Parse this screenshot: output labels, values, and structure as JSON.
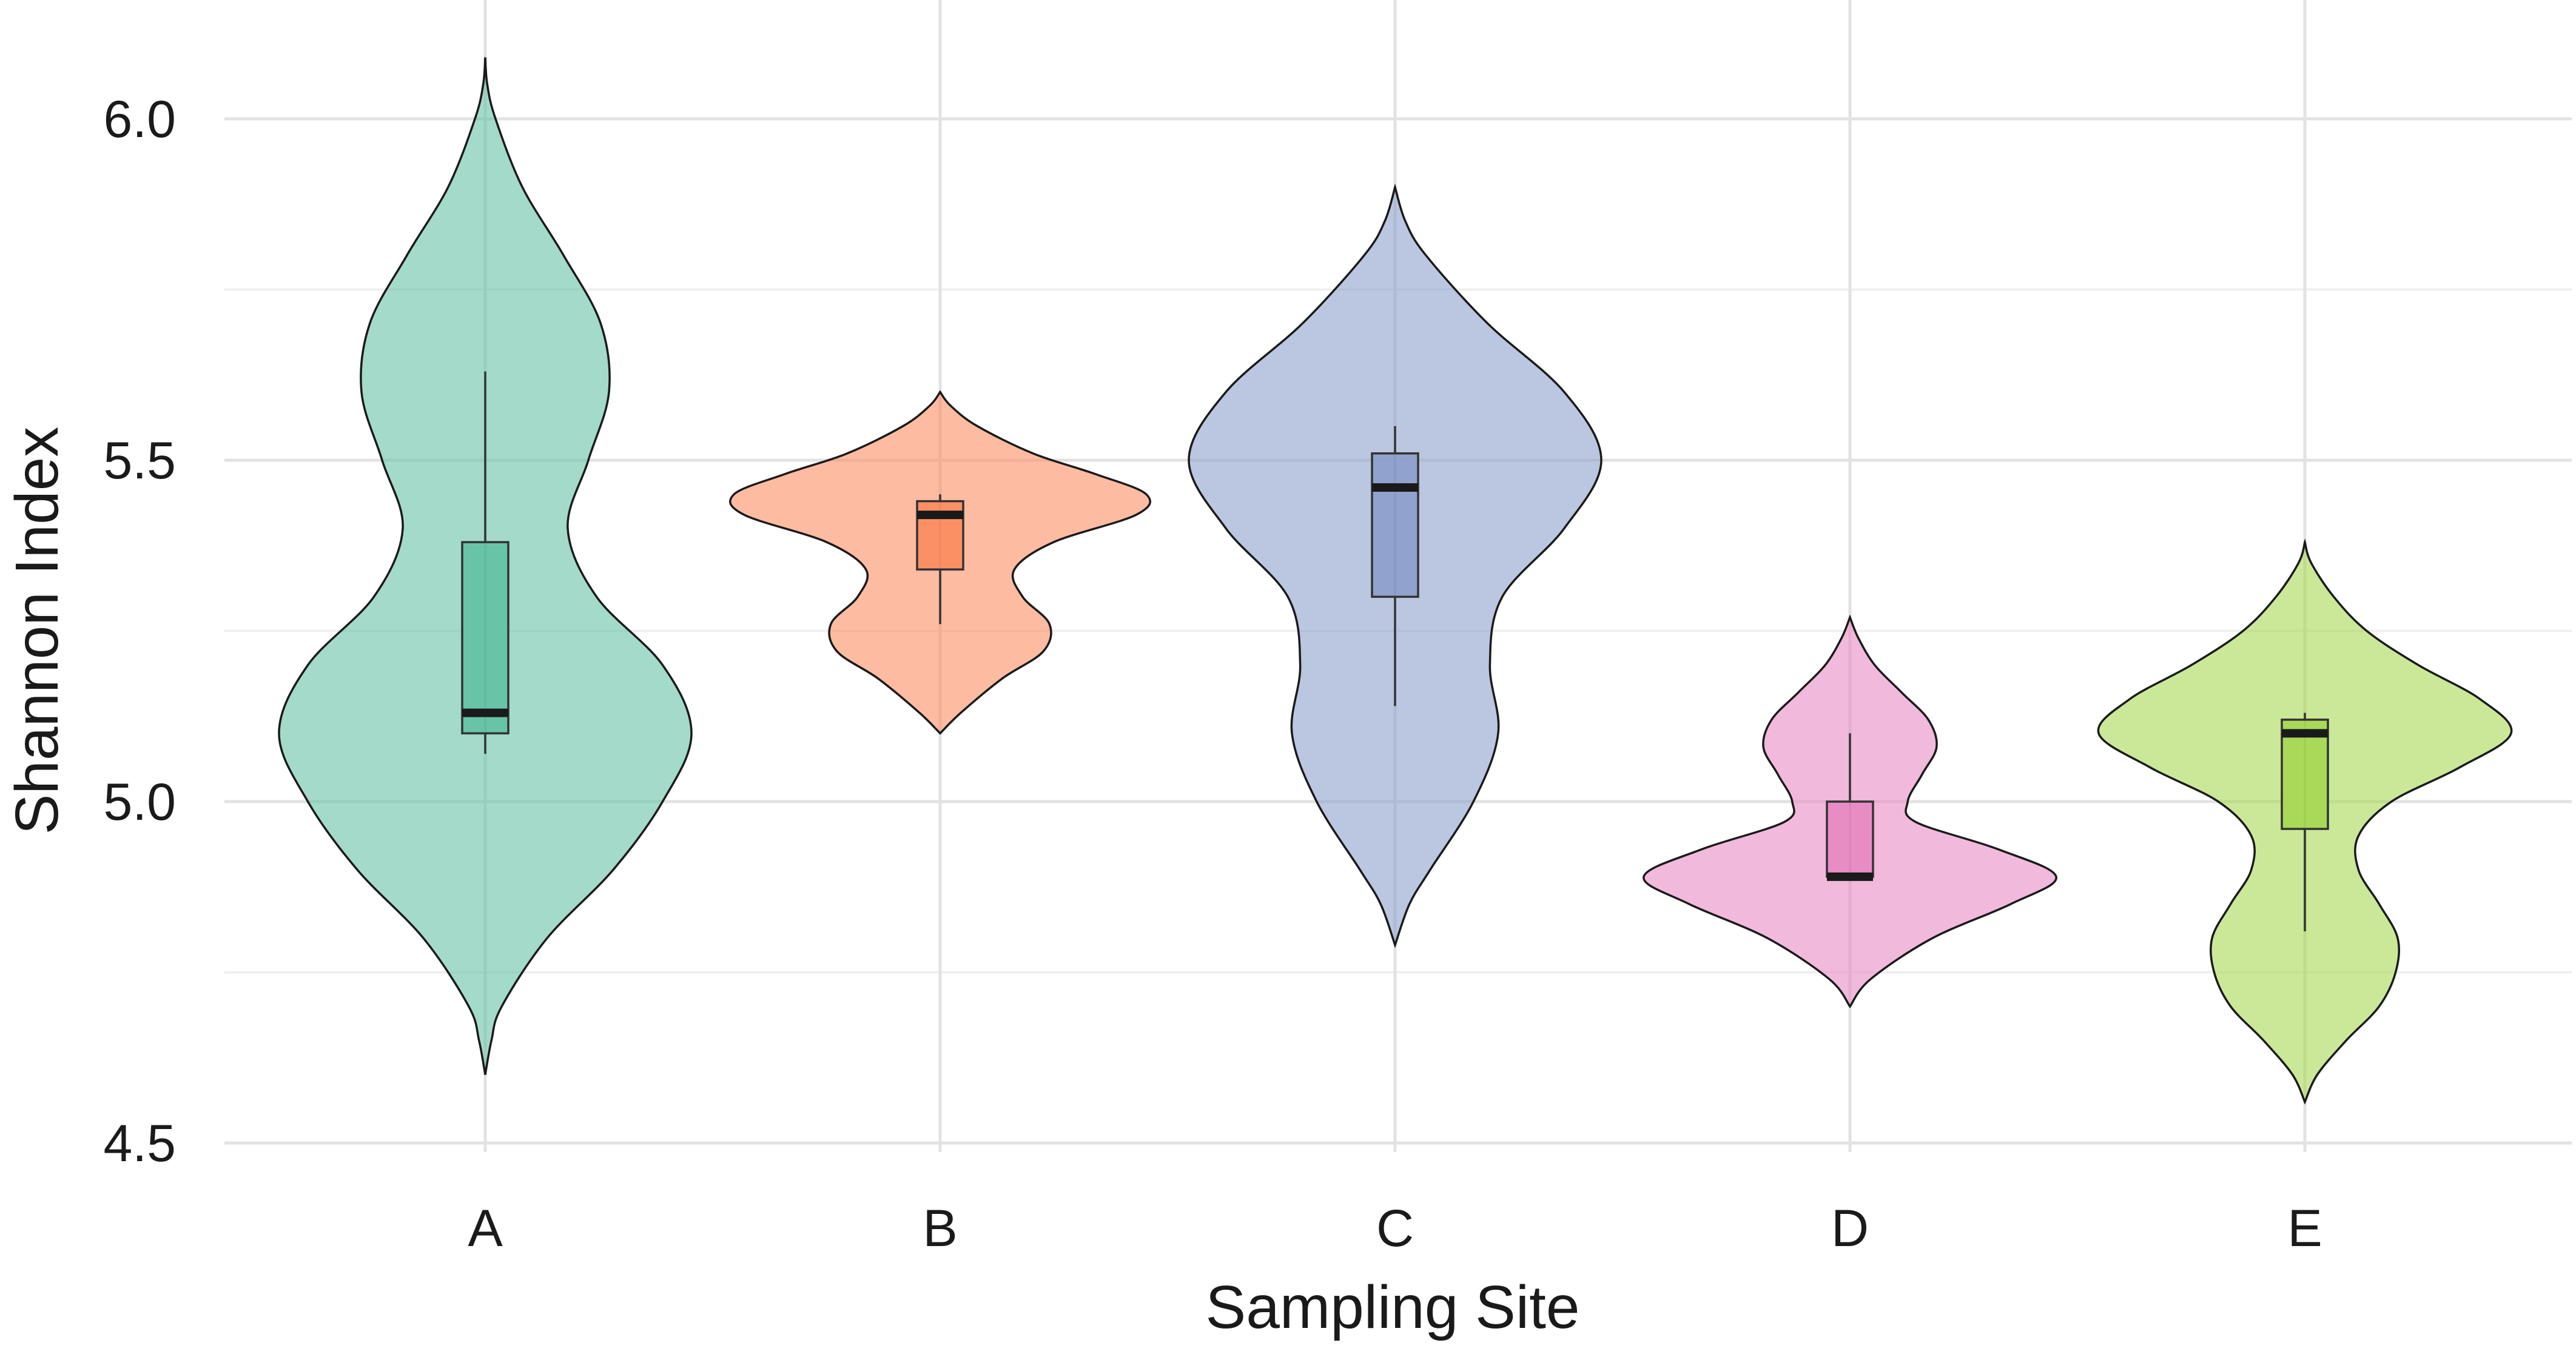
{
  "chart_data": {
    "type": "violin",
    "title": "",
    "xlabel": "Sampling Site",
    "ylabel": "Shannon Index",
    "ylim": [
      4.5,
      6.1
    ],
    "yticks": [
      "4.5",
      "5.0",
      "5.5",
      "6.0"
    ],
    "grid": true,
    "legend": "none",
    "categories": [
      "A",
      "B",
      "C",
      "D",
      "E"
    ],
    "series": [
      {
        "category": "A",
        "color": "#66c2a5",
        "box": {
          "min": 5.07,
          "q1": 5.1,
          "median": 5.13,
          "q3": 5.38,
          "max": 5.63
        },
        "density": {
          "y": [
            4.6,
            4.65,
            4.7,
            4.8,
            4.9,
            5.0,
            5.1,
            5.2,
            5.3,
            5.4,
            5.5,
            5.6,
            5.7,
            5.8,
            5.9,
            6.0,
            6.05,
            6.09
          ],
          "w": [
            0.0,
            0.03,
            0.08,
            0.3,
            0.62,
            0.86,
            1.0,
            0.86,
            0.54,
            0.4,
            0.5,
            0.6,
            0.56,
            0.38,
            0.18,
            0.05,
            0.01,
            0.0
          ]
        }
      },
      {
        "category": "B",
        "color": "#fc8d62",
        "box": {
          "min": 5.26,
          "q1": 5.34,
          "median": 5.42,
          "q3": 5.44,
          "max": 5.45
        },
        "density": {
          "y": [
            5.1,
            5.13,
            5.18,
            5.22,
            5.26,
            5.3,
            5.34,
            5.38,
            5.42,
            5.45,
            5.48,
            5.51,
            5.55,
            5.58,
            5.6
          ],
          "w": [
            0.0,
            0.1,
            0.3,
            0.5,
            0.53,
            0.4,
            0.36,
            0.55,
            0.95,
            1.0,
            0.75,
            0.45,
            0.18,
            0.05,
            0.0
          ]
        }
      },
      {
        "category": "C",
        "color": "#8da0cb",
        "box": {
          "min": 5.14,
          "q1": 5.3,
          "median": 5.46,
          "q3": 5.51,
          "max": 5.55
        },
        "density": {
          "y": [
            4.79,
            4.85,
            4.9,
            5.0,
            5.1,
            5.2,
            5.3,
            5.4,
            5.5,
            5.6,
            5.7,
            5.8,
            5.85,
            5.9
          ],
          "w": [
            0.0,
            0.07,
            0.17,
            0.38,
            0.5,
            0.46,
            0.52,
            0.82,
            1.0,
            0.82,
            0.45,
            0.15,
            0.05,
            0.0
          ]
        }
      },
      {
        "category": "D",
        "color": "#e78ac3",
        "box": {
          "min": 4.89,
          "q1": 4.89,
          "median": 4.89,
          "q3": 5.0,
          "max": 5.1
        },
        "density": {
          "y": [
            4.7,
            4.74,
            4.8,
            4.85,
            4.89,
            4.93,
            4.97,
            5.0,
            5.04,
            5.08,
            5.12,
            5.16,
            5.2,
            5.24,
            5.27
          ],
          "w": [
            0.0,
            0.1,
            0.4,
            0.78,
            1.0,
            0.72,
            0.32,
            0.28,
            0.35,
            0.42,
            0.38,
            0.25,
            0.12,
            0.04,
            0.0
          ]
        }
      },
      {
        "category": "E",
        "color": "#a6d854",
        "box": {
          "min": 4.81,
          "q1": 4.96,
          "median": 5.1,
          "q3": 5.12,
          "max": 5.13
        },
        "density": {
          "y": [
            4.56,
            4.6,
            4.65,
            4.7,
            4.75,
            4.8,
            4.85,
            4.9,
            4.95,
            5.0,
            5.05,
            5.1,
            5.15,
            5.2,
            5.25,
            5.3,
            5.35,
            5.38
          ],
          "w": [
            0.0,
            0.06,
            0.2,
            0.36,
            0.44,
            0.45,
            0.36,
            0.26,
            0.26,
            0.42,
            0.75,
            1.0,
            0.85,
            0.55,
            0.3,
            0.14,
            0.03,
            0.0
          ]
        }
      }
    ]
  }
}
